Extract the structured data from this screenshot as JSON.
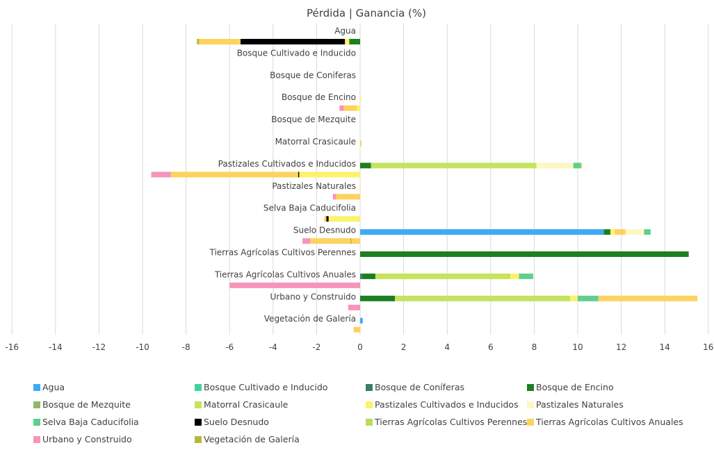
{
  "chart_data": {
    "type": "bar",
    "orientation": "horizontal",
    "stacked": true,
    "title": "Pérdida | Ganancia (%)",
    "xlim": [
      -16,
      16
    ],
    "xticks": [
      -16,
      -14,
      -12,
      -10,
      -8,
      -6,
      -4,
      -2,
      0,
      2,
      4,
      6,
      8,
      10,
      12,
      14,
      16
    ],
    "grid": true,
    "legend_position": "bottom",
    "categories": [
      "Agua",
      "Bosque Cultivado e Inducido",
      "Bosque de Coniferas",
      "Bosque de Encino",
      "Bosque de Mezquite",
      "Matorral Crasicaule",
      "Pastizales Cultivados e Inducidos",
      "Pastizales Naturales",
      "Selva Baja Caducifolia",
      "Suelo Desnudo",
      "Tierras Agrícolas  Cultivos Perennes",
      "Tierras Agrícolas Cultivos Anuales",
      "Urbano y Construido",
      "Vegetación de Galería"
    ],
    "series": [
      {
        "name": "Agua",
        "color": "#3fa9f5"
      },
      {
        "name": "Bosque Cultivado e Inducido",
        "color": "#3ed49a"
      },
      {
        "name": "Bosque de Coníferas",
        "color": "#3a7f68"
      },
      {
        "name": "Bosque de Encino",
        "color": "#1d7e22"
      },
      {
        "name": "Bosque de Mezquite",
        "color": "#8db872"
      },
      {
        "name": "Matorral Crasicaule",
        "color": "#c5e35d"
      },
      {
        "name": "Pastizales Cultivados e Inducidos",
        "color": "#fbf36a"
      },
      {
        "name": "Pastizales Naturales",
        "color": "#fcf7c3"
      },
      {
        "name": "Selva Baja Caducifolia",
        "color": "#5ecf8f"
      },
      {
        "name": "Suelo Desnudo",
        "color": "#000000"
      },
      {
        "name": "Tierras Agrícolas  Cultivos Perennes",
        "color": "#b8dc5c"
      },
      {
        "name": "Tierras Agrícolas Cultivos Anuales",
        "color": "#fdd35e"
      },
      {
        "name": "Urbano y Construido",
        "color": "#f794bb"
      },
      {
        "name": "Vegetación de Galería",
        "color": "#b5b93a"
      }
    ],
    "losses": [
      {
        "category": "Agua",
        "segments": [
          [
            "Bosque de Encino",
            0.5
          ],
          [
            "Pastizales Cultivados e Inducidos",
            0.2
          ],
          [
            "Suelo Desnudo",
            4.8
          ],
          [
            "Tierras Agrícolas Cultivos Anuales",
            1.9
          ],
          [
            "Vegetación de Galería",
            0.1
          ]
        ]
      },
      {
        "category": "Bosque de Encino",
        "segments": [
          [
            "Pastizales Cultivados e Inducidos",
            0.15
          ],
          [
            "Tierras Agrícolas Cultivos Anuales",
            0.6
          ],
          [
            "Urbano y Construido",
            0.2
          ]
        ]
      },
      {
        "category": "Pastizales Cultivados e Inducidos",
        "segments": [
          [
            "Pastizales Cultivados e Inducidos",
            2.8
          ],
          [
            "Suelo Desnudo",
            0.05
          ],
          [
            "Tierras Agrícolas Cultivos Anuales",
            5.85
          ],
          [
            "Urbano y Construido",
            0.9
          ]
        ]
      },
      {
        "category": "Pastizales Naturales",
        "segments": [
          [
            "Tierras Agrícolas Cultivos Anuales",
            1.1
          ],
          [
            "Urbano y Construido",
            0.15
          ]
        ]
      },
      {
        "category": "Selva Baja Caducifolia",
        "segments": [
          [
            "Pastizales Cultivados e Inducidos",
            1.45
          ],
          [
            "Suelo Desnudo",
            0.1
          ],
          [
            "Tierras Agrícolas Cultivos Anuales",
            0.1
          ]
        ]
      },
      {
        "category": "Suelo Desnudo",
        "segments": [
          [
            "Tierras Agrícolas Cultivos Anuales",
            0.4
          ],
          [
            "Vegetación de Galería",
            0.05
          ],
          [
            "Tierras Agrícolas Cultivos Anuales",
            1.85
          ],
          [
            "Urbano y Construido",
            0.35
          ]
        ]
      },
      {
        "category": "Tierras Agrícolas Cultivos Anuales",
        "segments": [
          [
            "Urbano y Construido",
            6.0
          ]
        ]
      },
      {
        "category": "Urbano y Construido",
        "segments": [
          [
            "Urbano y Construido",
            0.55
          ]
        ]
      },
      {
        "category": "Vegetación de Galería",
        "segments": [
          [
            "Tierras Agrícolas Cultivos Anuales",
            0.3
          ]
        ]
      }
    ],
    "gains": [
      {
        "category": "Bosque de Encino",
        "segments": [
          [
            "Pastizales Cultivados e Inducidos",
            0.05
          ]
        ]
      },
      {
        "category": "Matorral Crasicaule",
        "segments": [
          [
            "Tierras Agrícolas Cultivos Anuales",
            0.07
          ]
        ]
      },
      {
        "category": "Pastizales Cultivados e Inducidos",
        "segments": [
          [
            "Bosque de Encino",
            0.5
          ],
          [
            "Matorral Crasicaule",
            7.6
          ],
          [
            "Pastizales Naturales",
            1.7
          ],
          [
            "Selva Baja Caducifolia",
            0.35
          ],
          [
            "Tierras Agrícolas Cultivos Anuales",
            0.05
          ]
        ]
      },
      {
        "category": "Pastizales Naturales",
        "segments": [
          [
            "Pastizales Cultivados e Inducidos",
            0.03
          ]
        ]
      },
      {
        "category": "Suelo Desnudo",
        "segments": [
          [
            "Agua",
            11.2
          ],
          [
            "Bosque de Encino",
            0.3
          ],
          [
            "Pastizales Cultivados e Inducidos",
            0.2
          ],
          [
            "Tierras Agrícolas Cultivos Anuales",
            0.5
          ],
          [
            "Pastizales Naturales",
            0.85
          ],
          [
            "Selva Baja Caducifolia",
            0.3
          ]
        ]
      },
      {
        "category": "Tierras Agrícolas  Cultivos Perennes",
        "segments": [
          [
            "Bosque de Encino",
            15.1
          ]
        ]
      },
      {
        "category": "Tierras Agrícolas Cultivos Anuales",
        "segments": [
          [
            "Bosque de Coníferas",
            0.1
          ],
          [
            "Bosque de Encino",
            0.6
          ],
          [
            "Matorral Crasicaule",
            6.2
          ],
          [
            "Pastizales Cultivados e Inducidos",
            0.4
          ],
          [
            "Selva Baja Caducifolia",
            0.65
          ]
        ]
      },
      {
        "category": "Urbano y Construido",
        "segments": [
          [
            "Bosque de Encino",
            1.6
          ],
          [
            "Matorral Crasicaule",
            8.05
          ],
          [
            "Pastizales Cultivados e Inducidos",
            0.35
          ],
          [
            "Selva Baja Caducifolia",
            0.95
          ],
          [
            "Tierras Agrícolas Cultivos Anuales",
            4.55
          ]
        ]
      },
      {
        "category": "Vegetación de Galería",
        "segments": [
          [
            "Agua",
            0.12
          ]
        ]
      }
    ]
  }
}
